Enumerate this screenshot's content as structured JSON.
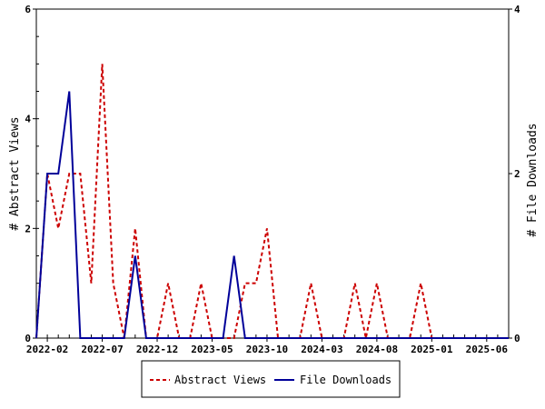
{
  "chart_data": {
    "type": "line",
    "ylabel_left": "# Abstract Views",
    "ylabel_right": "# File Downloads",
    "x_tick_labels": [
      "2022-02",
      "2022-07",
      "2022-12",
      "2023-05",
      "2023-10",
      "2024-03",
      "2024-08",
      "2025-01",
      "2025-06"
    ],
    "x_months": [
      "2022-01",
      "2022-02",
      "2022-03",
      "2022-04",
      "2022-05",
      "2022-06",
      "2022-07",
      "2022-08",
      "2022-09",
      "2022-10",
      "2022-11",
      "2022-12",
      "2023-01",
      "2023-02",
      "2023-03",
      "2023-04",
      "2023-05",
      "2023-06",
      "2023-07",
      "2023-08",
      "2023-09",
      "2023-10",
      "2023-11",
      "2023-12",
      "2024-01",
      "2024-02",
      "2024-03",
      "2024-04",
      "2024-05",
      "2024-06",
      "2024-07",
      "2024-08",
      "2024-09",
      "2024-10",
      "2024-11",
      "2024-12",
      "2025-01",
      "2025-02",
      "2025-03",
      "2025-04",
      "2025-05",
      "2025-06",
      "2025-07",
      "2025-08"
    ],
    "yleft_lim": [
      0,
      6
    ],
    "yleft_ticks": [
      0,
      2,
      4,
      6
    ],
    "yright_lim": [
      0,
      4
    ],
    "yright_ticks": [
      0,
      2,
      4
    ],
    "legend_position": "bottom",
    "series": [
      {
        "name": "Abstract Views",
        "axis": "left",
        "color": "#cc0000",
        "dash": true,
        "values": [
          0,
          3,
          2,
          3,
          3,
          1,
          5,
          1,
          0,
          2,
          0,
          0,
          1,
          0,
          0,
          1,
          0,
          0,
          0,
          1,
          1,
          2,
          0,
          0,
          0,
          1,
          0,
          0,
          0,
          1,
          0,
          1,
          0,
          0,
          0,
          1,
          0,
          0,
          0,
          0,
          0,
          0,
          0,
          0
        ]
      },
      {
        "name": "File Downloads",
        "axis": "right",
        "color": "#000099",
        "dash": false,
        "values": [
          0,
          2,
          2,
          3,
          0,
          0,
          0,
          0,
          0,
          1,
          0,
          0,
          0,
          0,
          0,
          0,
          0,
          0,
          1,
          0,
          0,
          0,
          0,
          0,
          0,
          0,
          0,
          0,
          0,
          0,
          0,
          0,
          0,
          0,
          0,
          0,
          0,
          0,
          0,
          0,
          0,
          0,
          0,
          0
        ]
      }
    ]
  }
}
